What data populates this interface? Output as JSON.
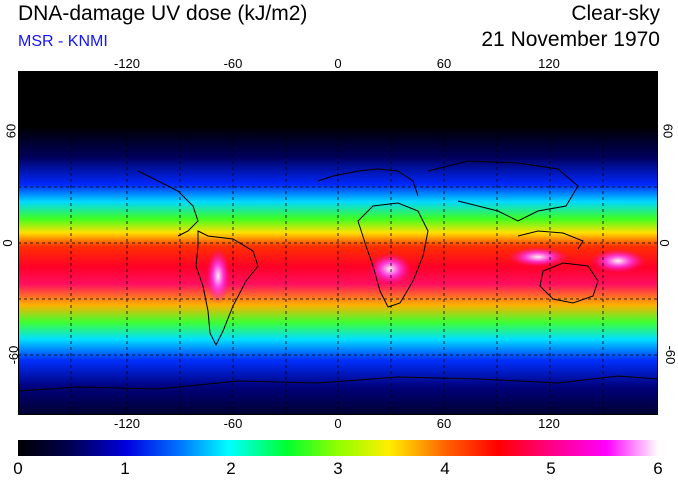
{
  "header": {
    "title": "DNA-damage UV dose (kJ/m2)",
    "subtitle": "MSR - KNMI",
    "condition": "Clear-sky",
    "date": "21 November 1970"
  },
  "map": {
    "lon_ticks": [
      "-120",
      "-60",
      "0",
      "60",
      "120"
    ],
    "lat_ticks_left": [
      "60",
      "0",
      "-60"
    ],
    "lat_ticks_right": [
      "60",
      "0",
      "-60"
    ]
  },
  "colorbar": {
    "labels": [
      "0",
      "1",
      "2",
      "3",
      "4",
      "5",
      "6"
    ],
    "colors": [
      "#000000",
      "#0000a0",
      "#0050ff",
      "#00e0ff",
      "#00ff40",
      "#b0ff00",
      "#ffd000",
      "#ff7000",
      "#ff0000",
      "#ff0080",
      "#ff00ff",
      "#ffffff"
    ]
  }
}
